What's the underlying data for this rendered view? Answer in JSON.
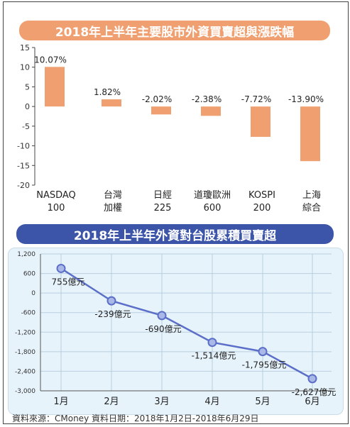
{
  "source_note": "資料來源：CMoney 資料日期：2018年1月2日-2018年6月29日",
  "chart_data": [
    {
      "type": "bar",
      "title": "2018年上半年主要股市外資買賣超與漲跌幅",
      "categories": [
        [
          "NASDAQ",
          "100"
        ],
        [
          "台灣",
          "加權"
        ],
        [
          "日經",
          "225"
        ],
        [
          "道瓊歐洲",
          "600"
        ],
        [
          "KOSPI",
          "200"
        ],
        [
          "上海",
          "綜合"
        ]
      ],
      "values": [
        10.07,
        1.82,
        -2.02,
        -2.38,
        -7.72,
        -13.9
      ],
      "value_labels": [
        "10.07%",
        "1.82%",
        "-2.02%",
        "-2.38%",
        "-7.72%",
        "-13.90%"
      ],
      "ylim": [
        -20,
        15
      ],
      "yticks": [
        15,
        10,
        5,
        0,
        -5,
        -10,
        -15,
        -20
      ],
      "grid": false,
      "bar_color": "#f0a070"
    },
    {
      "type": "line",
      "title": "2018年上半年外資對台股累積買賣超",
      "categories": [
        "1月",
        "2月",
        "3月",
        "4月",
        "5月",
        "6月"
      ],
      "values": [
        755,
        -239,
        -690,
        -1514,
        -1795,
        -2627
      ],
      "value_labels": [
        "755億元",
        "-239億元",
        "-690億元",
        "-1,514億元",
        "-1,795億元",
        "-2,627億元"
      ],
      "ylim": [
        -3000,
        1200
      ],
      "yticks": [
        "1,200",
        "600",
        "0",
        "-600",
        "-1,200",
        "-1,800",
        "-2,400",
        "-3,000"
      ],
      "ytick_values": [
        1200,
        600,
        0,
        -600,
        -1200,
        -1800,
        -2400,
        -3000
      ],
      "grid": true,
      "line_color": "#5b6fc9",
      "marker_color": "#a9b8e6"
    }
  ]
}
